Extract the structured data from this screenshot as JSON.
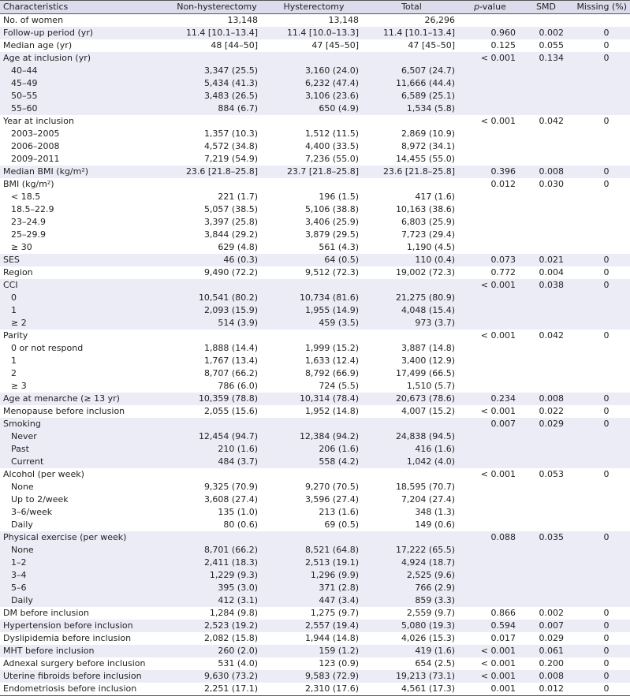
{
  "header": {
    "characteristics": "Characteristics",
    "non_hysterectomy": "Non-hysterectomy",
    "hysterectomy": "Hysterectomy",
    "total": "Total",
    "p_value_italic": "p",
    "p_value_rest": "-value",
    "smd": "SMD",
    "missing": "Missing (%)"
  },
  "rows": [
    {
      "label": "No. of women",
      "sub": false,
      "shade": false,
      "c1": "13,148",
      "c2": "13,148",
      "c3": "26,296",
      "p": "",
      "smd": "",
      "miss": ""
    },
    {
      "label": "Follow-up period (yr)",
      "sub": false,
      "shade": true,
      "c1": "11.4 [10.1–13.4]",
      "c2": "11.4 [10.0–13.3]",
      "c3": "11.4 [10.1–13.4]",
      "p": "0.960",
      "smd": "0.002",
      "miss": "0"
    },
    {
      "label": "Median age (yr)",
      "sub": false,
      "shade": false,
      "c1": "48 [44–50]",
      "c2": "47 [45–50]",
      "c3": "47 [45–50]",
      "p": "0.125",
      "smd": "0.055",
      "miss": "0"
    },
    {
      "label": "Age at inclusion (yr)",
      "sub": false,
      "shade": true,
      "c1": "",
      "c2": "",
      "c3": "",
      "p": "< 0.001",
      "smd": "0.134",
      "miss": "0"
    },
    {
      "label": "40–44",
      "sub": true,
      "shade": true,
      "c1": "3,347 (25.5)",
      "c2": "3,160 (24.0)",
      "c3": "6,507 (24.7)",
      "p": "",
      "smd": "",
      "miss": ""
    },
    {
      "label": "45–49",
      "sub": true,
      "shade": true,
      "c1": "5,434 (41.3)",
      "c2": "6,232 (47.4)",
      "c3": "11,666 (44.4)",
      "p": "",
      "smd": "",
      "miss": ""
    },
    {
      "label": "50–55",
      "sub": true,
      "shade": true,
      "c1": "3,483 (26.5)",
      "c2": "3,106 (23.6)",
      "c3": "6,589 (25.1)",
      "p": "",
      "smd": "",
      "miss": ""
    },
    {
      "label": "55–60",
      "sub": true,
      "shade": true,
      "c1": "884 (6.7)",
      "c2": "650 (4.9)",
      "c3": "1,534 (5.8)",
      "p": "",
      "smd": "",
      "miss": ""
    },
    {
      "label": "Year at inclusion",
      "sub": false,
      "shade": false,
      "c1": "",
      "c2": "",
      "c3": "",
      "p": "< 0.001",
      "smd": "0.042",
      "miss": "0"
    },
    {
      "label": "2003–2005",
      "sub": true,
      "shade": false,
      "c1": "1,357 (10.3)",
      "c2": "1,512 (11.5)",
      "c3": "2,869 (10.9)",
      "p": "",
      "smd": "",
      "miss": ""
    },
    {
      "label": "2006–2008",
      "sub": true,
      "shade": false,
      "c1": "4,572 (34.8)",
      "c2": "4,400 (33.5)",
      "c3": "8,972 (34.1)",
      "p": "",
      "smd": "",
      "miss": ""
    },
    {
      "label": "2009–2011",
      "sub": true,
      "shade": false,
      "c1": "7,219 (54.9)",
      "c2": "7,236 (55.0)",
      "c3": "14,455 (55.0)",
      "p": "",
      "smd": "",
      "miss": ""
    },
    {
      "label": "Median BMI (kg/m²)",
      "sub": false,
      "shade": true,
      "c1": "23.6 [21.8–25.8]",
      "c2": "23.7 [21.8–25.8]",
      "c3": "23.6 [21.8–25.8]",
      "p": "0.396",
      "smd": "0.008",
      "miss": "0"
    },
    {
      "label": "BMI (kg/m²)",
      "sub": false,
      "shade": false,
      "c1": "",
      "c2": "",
      "c3": "",
      "p": "0.012",
      "smd": "0.030",
      "miss": "0"
    },
    {
      "label": "< 18.5",
      "sub": true,
      "shade": false,
      "c1": "221 (1.7)",
      "c2": "196 (1.5)",
      "c3": "417 (1.6)",
      "p": "",
      "smd": "",
      "miss": ""
    },
    {
      "label": "18.5–22.9",
      "sub": true,
      "shade": false,
      "c1": "5,057 (38.5)",
      "c2": "5,106 (38.8)",
      "c3": "10,163 (38.6)",
      "p": "",
      "smd": "",
      "miss": ""
    },
    {
      "label": "23–24.9",
      "sub": true,
      "shade": false,
      "c1": "3,397 (25.8)",
      "c2": "3,406 (25.9)",
      "c3": "6,803 (25.9)",
      "p": "",
      "smd": "",
      "miss": ""
    },
    {
      "label": "25–29.9",
      "sub": true,
      "shade": false,
      "c1": "3,844 (29.2)",
      "c2": "3,879 (29.5)",
      "c3": "7,723 (29.4)",
      "p": "",
      "smd": "",
      "miss": ""
    },
    {
      "label": "≥ 30",
      "sub": true,
      "shade": false,
      "c1": "629 (4.8)",
      "c2": "561 (4.3)",
      "c3": "1,190 (4.5)",
      "p": "",
      "smd": "",
      "miss": ""
    },
    {
      "label": "SES",
      "sub": false,
      "shade": true,
      "c1": "46 (0.3)",
      "c2": "64 (0.5)",
      "c3": "110 (0.4)",
      "p": "0.073",
      "smd": "0.021",
      "miss": "0"
    },
    {
      "label": "Region",
      "sub": false,
      "shade": false,
      "c1": "9,490 (72.2)",
      "c2": "9,512 (72.3)",
      "c3": "19,002 (72.3)",
      "p": "0.772",
      "smd": "0.004",
      "miss": "0"
    },
    {
      "label": "CCI",
      "sub": false,
      "shade": true,
      "c1": "",
      "c2": "",
      "c3": "",
      "p": "< 0.001",
      "smd": "0.038",
      "miss": "0"
    },
    {
      "label": "0",
      "sub": true,
      "shade": true,
      "c1": "10,541 (80.2)",
      "c2": "10,734 (81.6)",
      "c3": "21,275 (80.9)",
      "p": "",
      "smd": "",
      "miss": ""
    },
    {
      "label": "1",
      "sub": true,
      "shade": true,
      "c1": "2,093 (15.9)",
      "c2": "1,955 (14.9)",
      "c3": "4,048 (15.4)",
      "p": "",
      "smd": "",
      "miss": ""
    },
    {
      "label": "≥ 2",
      "sub": true,
      "shade": true,
      "c1": "514 (3.9)",
      "c2": "459 (3.5)",
      "c3": "973 (3.7)",
      "p": "",
      "smd": "",
      "miss": ""
    },
    {
      "label": "Parity",
      "sub": false,
      "shade": false,
      "c1": "",
      "c2": "",
      "c3": "",
      "p": "< 0.001",
      "smd": "0.042",
      "miss": "0"
    },
    {
      "label": "0 or not respond",
      "sub": true,
      "shade": false,
      "c1": "1,888 (14.4)",
      "c2": "1,999 (15.2)",
      "c3": "3,887 (14.8)",
      "p": "",
      "smd": "",
      "miss": ""
    },
    {
      "label": "1",
      "sub": true,
      "shade": false,
      "c1": "1,767 (13.4)",
      "c2": "1,633 (12.4)",
      "c3": "3,400 (12.9)",
      "p": "",
      "smd": "",
      "miss": ""
    },
    {
      "label": "2",
      "sub": true,
      "shade": false,
      "c1": "8,707 (66.2)",
      "c2": "8,792 (66.9)",
      "c3": "17,499 (66.5)",
      "p": "",
      "smd": "",
      "miss": ""
    },
    {
      "label": "≥ 3",
      "sub": true,
      "shade": false,
      "c1": "786 (6.0)",
      "c2": "724 (5.5)",
      "c3": "1,510 (5.7)",
      "p": "",
      "smd": "",
      "miss": ""
    },
    {
      "label": "Age at menarche (≥ 13 yr)",
      "sub": false,
      "shade": true,
      "c1": "10,359 (78.8)",
      "c2": "10,314 (78.4)",
      "c3": "20,673 (78.6)",
      "p": "0.234",
      "smd": "0.008",
      "miss": "0"
    },
    {
      "label": "Menopause before inclusion",
      "sub": false,
      "shade": false,
      "c1": "2,055 (15.6)",
      "c2": "1,952 (14.8)",
      "c3": "4,007 (15.2)",
      "p": "< 0.001",
      "smd": "0.022",
      "miss": "0"
    },
    {
      "label": "Smoking",
      "sub": false,
      "shade": true,
      "c1": "",
      "c2": "",
      "c3": "",
      "p": "0.007",
      "smd": "0.029",
      "miss": "0"
    },
    {
      "label": "Never",
      "sub": true,
      "shade": true,
      "c1": "12,454 (94.7)",
      "c2": "12,384 (94.2)",
      "c3": "24,838 (94.5)",
      "p": "",
      "smd": "",
      "miss": ""
    },
    {
      "label": "Past",
      "sub": true,
      "shade": true,
      "c1": "210 (1.6)",
      "c2": "206 (1.6)",
      "c3": "416 (1.6)",
      "p": "",
      "smd": "",
      "miss": ""
    },
    {
      "label": "Current",
      "sub": true,
      "shade": true,
      "c1": "484 (3.7)",
      "c2": "558 (4.2)",
      "c3": "1,042 (4.0)",
      "p": "",
      "smd": "",
      "miss": ""
    },
    {
      "label": "Alcohol (per week)",
      "sub": false,
      "shade": false,
      "c1": "",
      "c2": "",
      "c3": "",
      "p": "< 0.001",
      "smd": "0.053",
      "miss": "0"
    },
    {
      "label": "None",
      "sub": true,
      "shade": false,
      "c1": "9,325 (70.9)",
      "c2": "9,270 (70.5)",
      "c3": "18,595 (70.7)",
      "p": "",
      "smd": "",
      "miss": ""
    },
    {
      "label": "Up to 2/week",
      "sub": true,
      "shade": false,
      "c1": "3,608 (27.4)",
      "c2": "3,596 (27.4)",
      "c3": "7,204 (27.4)",
      "p": "",
      "smd": "",
      "miss": ""
    },
    {
      "label": "3–6/week",
      "sub": true,
      "shade": false,
      "c1": "135 (1.0)",
      "c2": "213 (1.6)",
      "c3": "348 (1.3)",
      "p": "",
      "smd": "",
      "miss": ""
    },
    {
      "label": "Daily",
      "sub": true,
      "shade": false,
      "c1": "80 (0.6)",
      "c2": "69 (0.5)",
      "c3": "149 (0.6)",
      "p": "",
      "smd": "",
      "miss": ""
    },
    {
      "label": "Physical exercise (per week)",
      "sub": false,
      "shade": true,
      "c1": "",
      "c2": "",
      "c3": "",
      "p": "0.088",
      "smd": "0.035",
      "miss": "0"
    },
    {
      "label": "None",
      "sub": true,
      "shade": true,
      "c1": "8,701 (66.2)",
      "c2": "8,521 (64.8)",
      "c3": "17,222 (65.5)",
      "p": "",
      "smd": "",
      "miss": ""
    },
    {
      "label": "1–2",
      "sub": true,
      "shade": true,
      "c1": "2,411 (18.3)",
      "c2": "2,513 (19.1)",
      "c3": "4,924 (18.7)",
      "p": "",
      "smd": "",
      "miss": ""
    },
    {
      "label": "3–4",
      "sub": true,
      "shade": true,
      "c1": "1,229 (9.3)",
      "c2": "1,296 (9.9)",
      "c3": "2,525 (9.6)",
      "p": "",
      "smd": "",
      "miss": ""
    },
    {
      "label": "5–6",
      "sub": true,
      "shade": true,
      "c1": "395 (3.0)",
      "c2": "371 (2.8)",
      "c3": "766 (2.9)",
      "p": "",
      "smd": "",
      "miss": ""
    },
    {
      "label": "Daily",
      "sub": true,
      "shade": true,
      "c1": "412 (3.1)",
      "c2": "447 (3.4)",
      "c3": "859 (3.3)",
      "p": "",
      "smd": "",
      "miss": ""
    },
    {
      "label": "DM before inclusion",
      "sub": false,
      "shade": false,
      "c1": "1,284 (9.8)",
      "c2": "1,275 (9.7)",
      "c3": "2,559 (9.7)",
      "p": "0.866",
      "smd": "0.002",
      "miss": "0"
    },
    {
      "label": "Hypertension before inclusion",
      "sub": false,
      "shade": true,
      "c1": "2,523 (19.2)",
      "c2": "2,557 (19.4)",
      "c3": "5,080 (19.3)",
      "p": "0.594",
      "smd": "0.007",
      "miss": "0"
    },
    {
      "label": "Dyslipidemia before inclusion",
      "sub": false,
      "shade": false,
      "c1": "2,082 (15.8)",
      "c2": "1,944 (14.8)",
      "c3": "4,026 (15.3)",
      "p": "0.017",
      "smd": "0.029",
      "miss": "0"
    },
    {
      "label": "MHT before inclusion",
      "sub": false,
      "shade": true,
      "c1": "260 (2.0)",
      "c2": "159 (1.2)",
      "c3": "419 (1.6)",
      "p": "< 0.001",
      "smd": "0.061",
      "miss": "0"
    },
    {
      "label": "Adnexal surgery before inclusion",
      "sub": false,
      "shade": false,
      "c1": "531 (4.0)",
      "c2": "123 (0.9)",
      "c3": "654 (2.5)",
      "p": "< 0.001",
      "smd": "0.200",
      "miss": "0"
    },
    {
      "label": "Uterine fibroids before inclusion",
      "sub": false,
      "shade": true,
      "c1": "9,630 (73.2)",
      "c2": "9,583 (72.9)",
      "c3": "19,213 (73.1)",
      "p": "< 0.001",
      "smd": "0.008",
      "miss": "0"
    },
    {
      "label": "Endometriosis before inclusion",
      "sub": false,
      "shade": false,
      "c1": "2,251 (17.1)",
      "c2": "2,310 (17.6)",
      "c3": "4,561 (17.3)",
      "p": "0.001",
      "smd": "0.012",
      "miss": "0"
    }
  ]
}
